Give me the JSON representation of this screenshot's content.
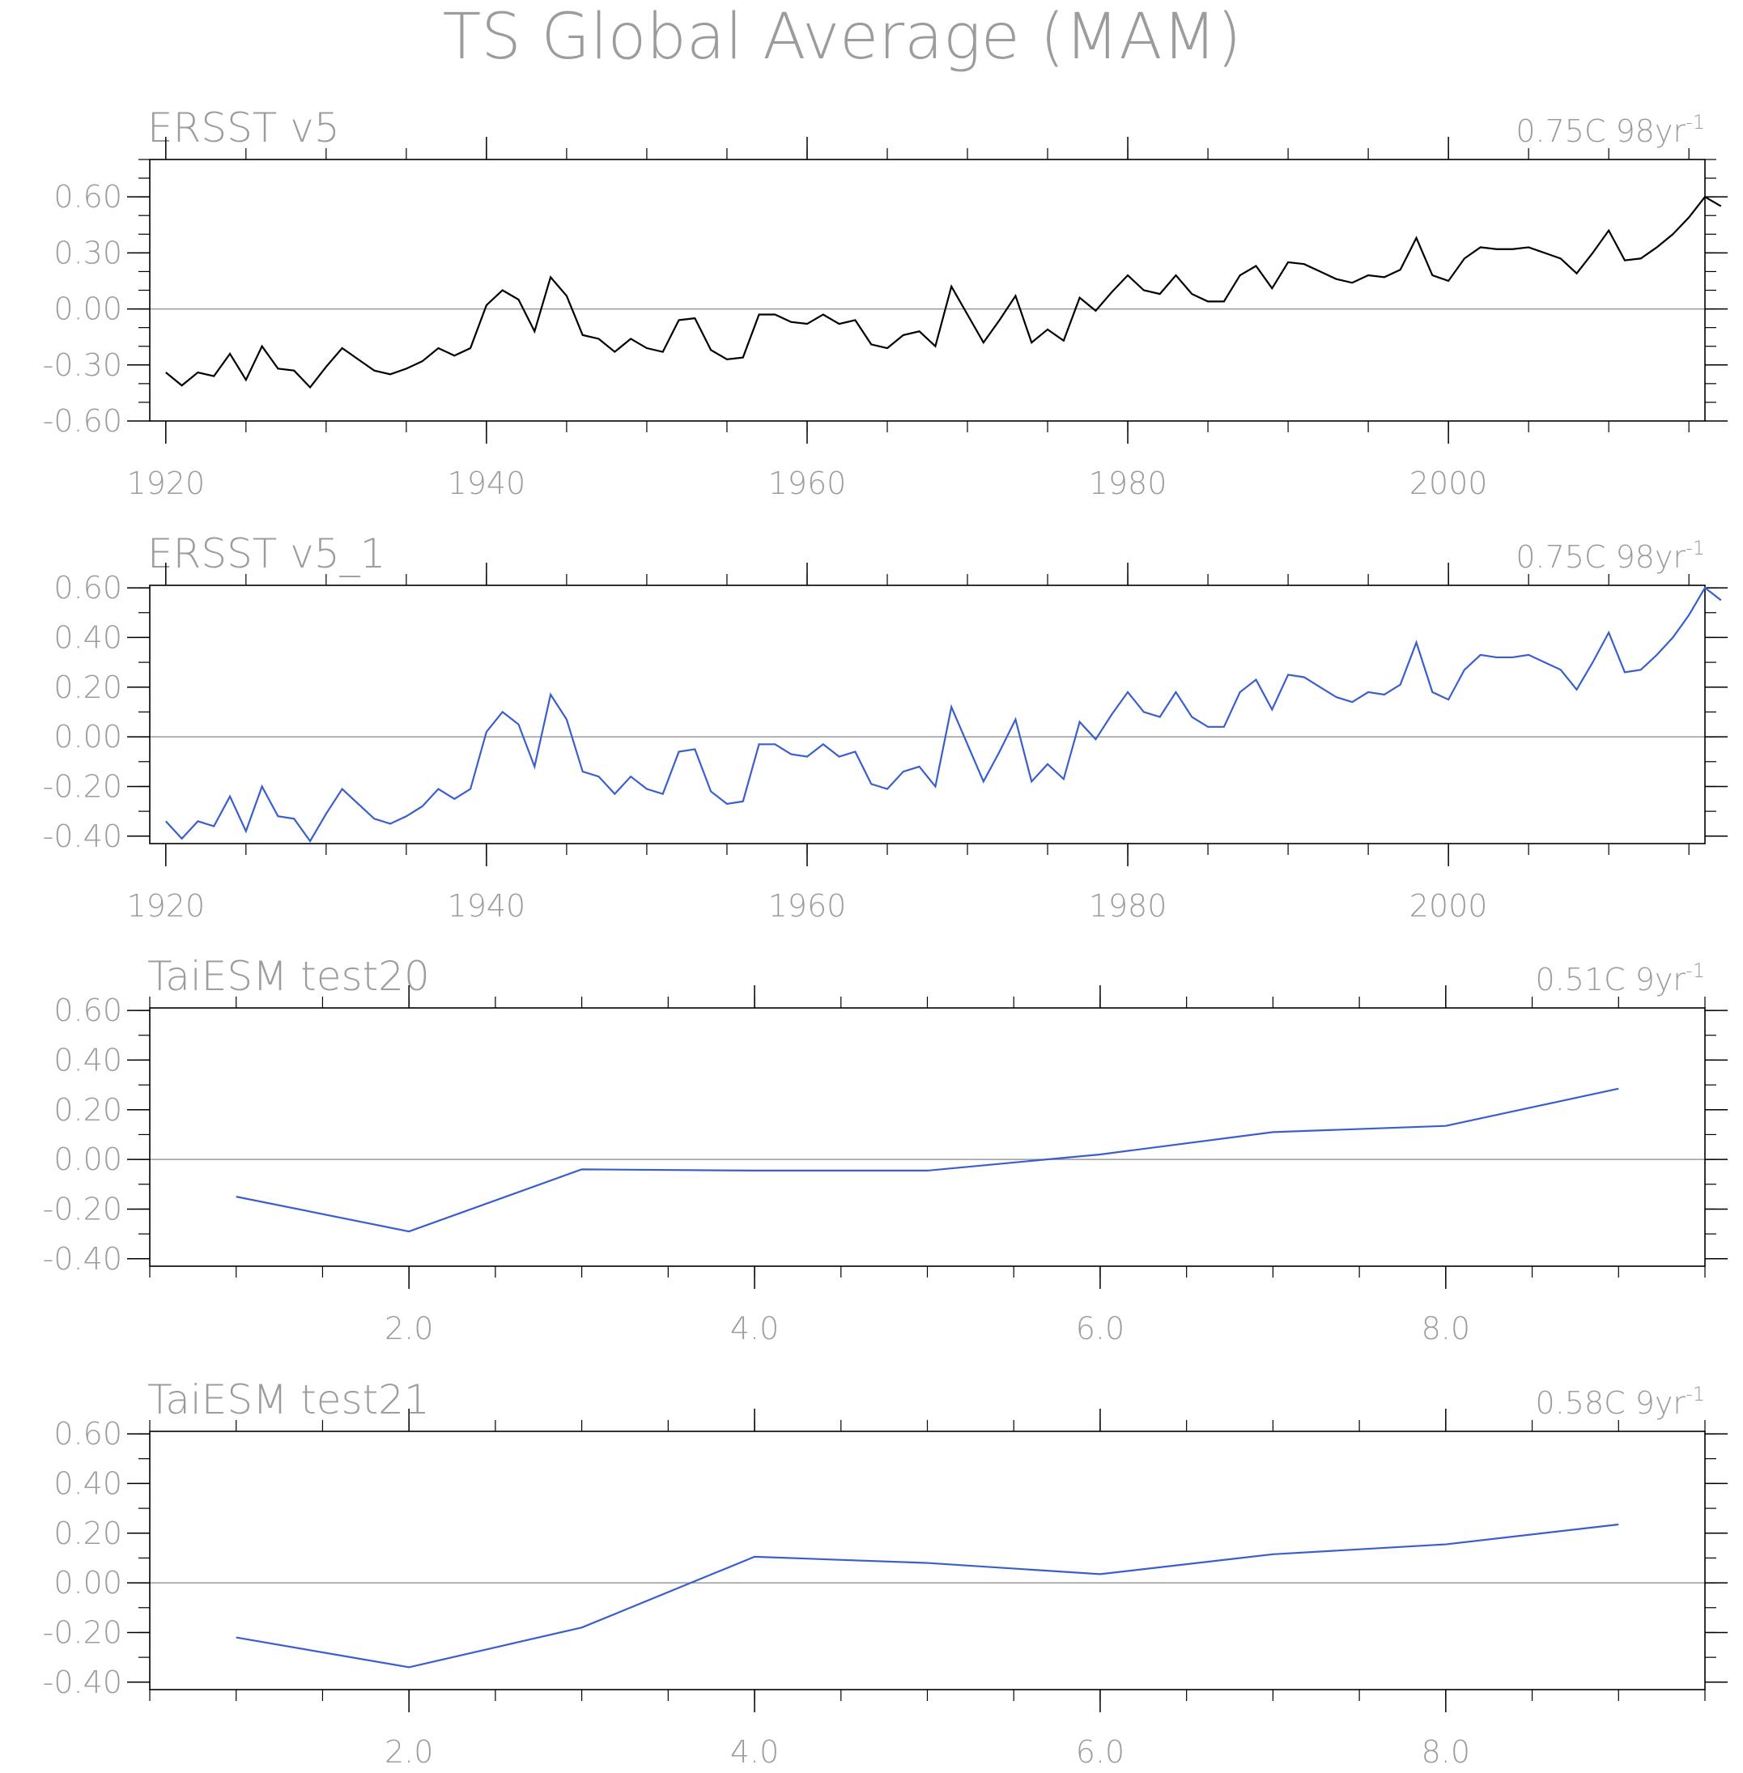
{
  "title": "TS Global Average (MAM)",
  "colors": {
    "text": "#9c9c9c",
    "frame": "#000000",
    "zero_line": "#9a9a9a",
    "obs_line": "#000000",
    "model_line": "#3a5fcd"
  },
  "chart_data": [
    {
      "type": "line",
      "title": "ERSST v5",
      "trend_label": "0.75C 98yr",
      "trend_sup": "-1",
      "xlim": [
        1919,
        2016
      ],
      "ylim": [
        -0.6,
        0.8
      ],
      "x_ticks": [
        1920,
        1940,
        1960,
        1980,
        2000
      ],
      "x_tick_labels": [
        "1920",
        "1940",
        "1960",
        "1980",
        "2000"
      ],
      "x_minor_step": 5,
      "y_ticks": [
        -0.6,
        -0.3,
        0.0,
        0.3,
        0.6
      ],
      "y_tick_labels": [
        "-0.60",
        "-0.30",
        "0.00",
        "0.30",
        "0.60"
      ],
      "y_minor_step": 0.1,
      "color": "#000000",
      "x_start": 1920,
      "values": [
        -0.34,
        -0.41,
        -0.34,
        -0.36,
        -0.24,
        -0.38,
        -0.2,
        -0.32,
        -0.33,
        -0.42,
        -0.31,
        -0.21,
        -0.27,
        -0.33,
        -0.35,
        -0.32,
        -0.28,
        -0.21,
        -0.25,
        -0.21,
        0.02,
        0.1,
        0.05,
        -0.12,
        0.17,
        0.07,
        -0.14,
        -0.16,
        -0.23,
        -0.16,
        -0.21,
        -0.23,
        -0.06,
        -0.05,
        -0.22,
        -0.27,
        -0.26,
        -0.03,
        -0.03,
        -0.07,
        -0.08,
        -0.03,
        -0.08,
        -0.06,
        -0.19,
        -0.21,
        -0.14,
        -0.12,
        -0.2,
        0.12,
        -0.03,
        -0.18,
        -0.06,
        0.07,
        -0.18,
        -0.11,
        -0.17,
        0.06,
        -0.01,
        0.09,
        0.18,
        0.1,
        0.08,
        0.18,
        0.08,
        0.04,
        0.04,
        0.18,
        0.23,
        0.11,
        0.25,
        0.24,
        0.2,
        0.16,
        0.14,
        0.18,
        0.17,
        0.21,
        0.38,
        0.18,
        0.15,
        0.27,
        0.33,
        0.32,
        0.32,
        0.33,
        0.3,
        0.27,
        0.19,
        0.3,
        0.42,
        0.26,
        0.27,
        0.33,
        0.4,
        0.49,
        0.6,
        0.55
      ]
    },
    {
      "type": "line",
      "title": "ERSST v5_1",
      "trend_label": "0.75C 98yr",
      "trend_sup": "-1",
      "xlim": [
        1919,
        2016
      ],
      "ylim": [
        -0.43,
        0.61
      ],
      "x_ticks": [
        1920,
        1940,
        1960,
        1980,
        2000
      ],
      "x_tick_labels": [
        "1920",
        "1940",
        "1960",
        "1980",
        "2000"
      ],
      "x_minor_step": 5,
      "y_ticks": [
        -0.4,
        -0.2,
        0.0,
        0.2,
        0.4,
        0.6
      ],
      "y_tick_labels": [
        "-0.40",
        "-0.20",
        "0.00",
        "0.20",
        "0.40",
        "0.60"
      ],
      "y_minor_step": 0.1,
      "color": "#3a5fcd",
      "x_start": 1920,
      "values": [
        -0.34,
        -0.41,
        -0.34,
        -0.36,
        -0.24,
        -0.38,
        -0.2,
        -0.32,
        -0.33,
        -0.42,
        -0.31,
        -0.21,
        -0.27,
        -0.33,
        -0.35,
        -0.32,
        -0.28,
        -0.21,
        -0.25,
        -0.21,
        0.02,
        0.1,
        0.05,
        -0.12,
        0.17,
        0.07,
        -0.14,
        -0.16,
        -0.23,
        -0.16,
        -0.21,
        -0.23,
        -0.06,
        -0.05,
        -0.22,
        -0.27,
        -0.26,
        -0.03,
        -0.03,
        -0.07,
        -0.08,
        -0.03,
        -0.08,
        -0.06,
        -0.19,
        -0.21,
        -0.14,
        -0.12,
        -0.2,
        0.12,
        -0.03,
        -0.18,
        -0.06,
        0.07,
        -0.18,
        -0.11,
        -0.17,
        0.06,
        -0.01,
        0.09,
        0.18,
        0.1,
        0.08,
        0.18,
        0.08,
        0.04,
        0.04,
        0.18,
        0.23,
        0.11,
        0.25,
        0.24,
        0.2,
        0.16,
        0.14,
        0.18,
        0.17,
        0.21,
        0.38,
        0.18,
        0.15,
        0.27,
        0.33,
        0.32,
        0.32,
        0.33,
        0.3,
        0.27,
        0.19,
        0.3,
        0.42,
        0.26,
        0.27,
        0.33,
        0.4,
        0.49,
        0.6,
        0.55
      ]
    },
    {
      "type": "line",
      "title": "TaiESM test20",
      "trend_label": "0.51C 9yr",
      "trend_sup": "-1",
      "xlim": [
        0.5,
        9.5
      ],
      "ylim": [
        -0.43,
        0.61
      ],
      "x_ticks": [
        2,
        4,
        6,
        8
      ],
      "x_tick_labels": [
        "2.0",
        "4.0",
        "6.0",
        "8.0"
      ],
      "x_minor_step": 0.5,
      "y_ticks": [
        -0.4,
        -0.2,
        0.0,
        0.2,
        0.4,
        0.6
      ],
      "y_tick_labels": [
        "-0.40",
        "-0.20",
        "0.00",
        "0.20",
        "0.40",
        "0.60"
      ],
      "y_minor_step": 0.1,
      "color": "#3a5fcd",
      "x": [
        1,
        2,
        3,
        4,
        5,
        6,
        7,
        8,
        9
      ],
      "values": [
        -0.15,
        -0.29,
        -0.04,
        -0.045,
        -0.045,
        0.02,
        0.11,
        0.135,
        0.285
      ]
    },
    {
      "type": "line",
      "title": "TaiESM test21",
      "trend_label": "0.58C 9yr",
      "trend_sup": "-1",
      "xlim": [
        0.5,
        9.5
      ],
      "ylim": [
        -0.43,
        0.61
      ],
      "x_ticks": [
        2,
        4,
        6,
        8
      ],
      "x_tick_labels": [
        "2.0",
        "4.0",
        "6.0",
        "8.0"
      ],
      "x_minor_step": 0.5,
      "y_ticks": [
        -0.4,
        -0.2,
        0.0,
        0.2,
        0.4,
        0.6
      ],
      "y_tick_labels": [
        "-0.40",
        "-0.20",
        "0.00",
        "0.20",
        "0.40",
        "0.60"
      ],
      "y_minor_step": 0.1,
      "color": "#3a5fcd",
      "x": [
        1,
        2,
        3,
        4,
        5,
        6,
        7,
        8,
        9
      ],
      "values": [
        -0.22,
        -0.34,
        -0.18,
        0.105,
        0.08,
        0.035,
        0.115,
        0.155,
        0.235
      ]
    }
  ]
}
